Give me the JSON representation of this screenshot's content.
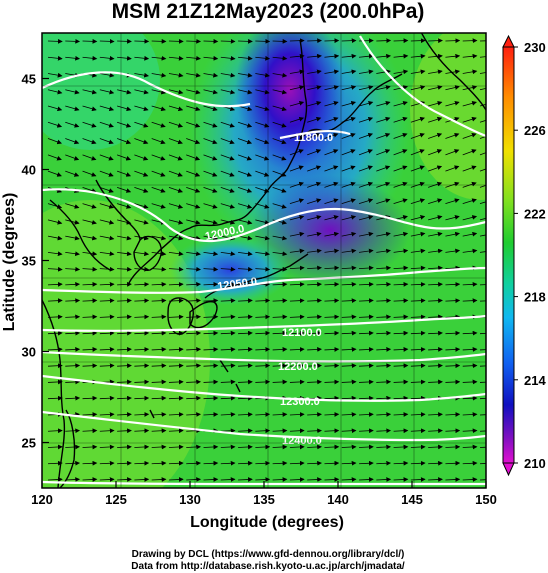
{
  "title": "MSM 21Z12May2023 (200.0hPa)",
  "x_axis": {
    "label": "Longitude (degrees)",
    "ticks": [
      "120",
      "125",
      "130",
      "135",
      "140",
      "145",
      "150"
    ],
    "range": [
      120,
      150
    ]
  },
  "y_axis": {
    "label": "Latitude  (degrees)",
    "ticks": [
      "25",
      "30",
      "35",
      "40",
      "45"
    ],
    "range": [
      22.5,
      47.5
    ]
  },
  "colorbar": {
    "labels": [
      "230",
      "226",
      "222",
      "218",
      "214",
      "210"
    ],
    "range": [
      210,
      230
    ]
  },
  "contours": [
    {
      "label": "11800.0",
      "lat": 42.4
    },
    {
      "label": "12000.0",
      "lat": 38.4
    },
    {
      "label": "12050.0",
      "lat": 34.4
    },
    {
      "label": "12100.0",
      "lat": 31.6
    },
    {
      "label": "12200.0",
      "lat": 29.7
    },
    {
      "label": "12300.0",
      "lat": 27.3
    },
    {
      "label": "12400.0",
      "lat": 24.9
    }
  ],
  "credits": {
    "line1": "Drawing by DCL (https://www.gfd-dennou.org/library/dcl/)",
    "line2": "Data from http://database.rish.kyoto-u.ac.jp/arch/jmadata/"
  },
  "colors": {
    "high": "#22cc22",
    "mid": "#1a2ad0",
    "low": "#a010b0",
    "contour": "#ffffff",
    "coast": "#000000"
  }
}
